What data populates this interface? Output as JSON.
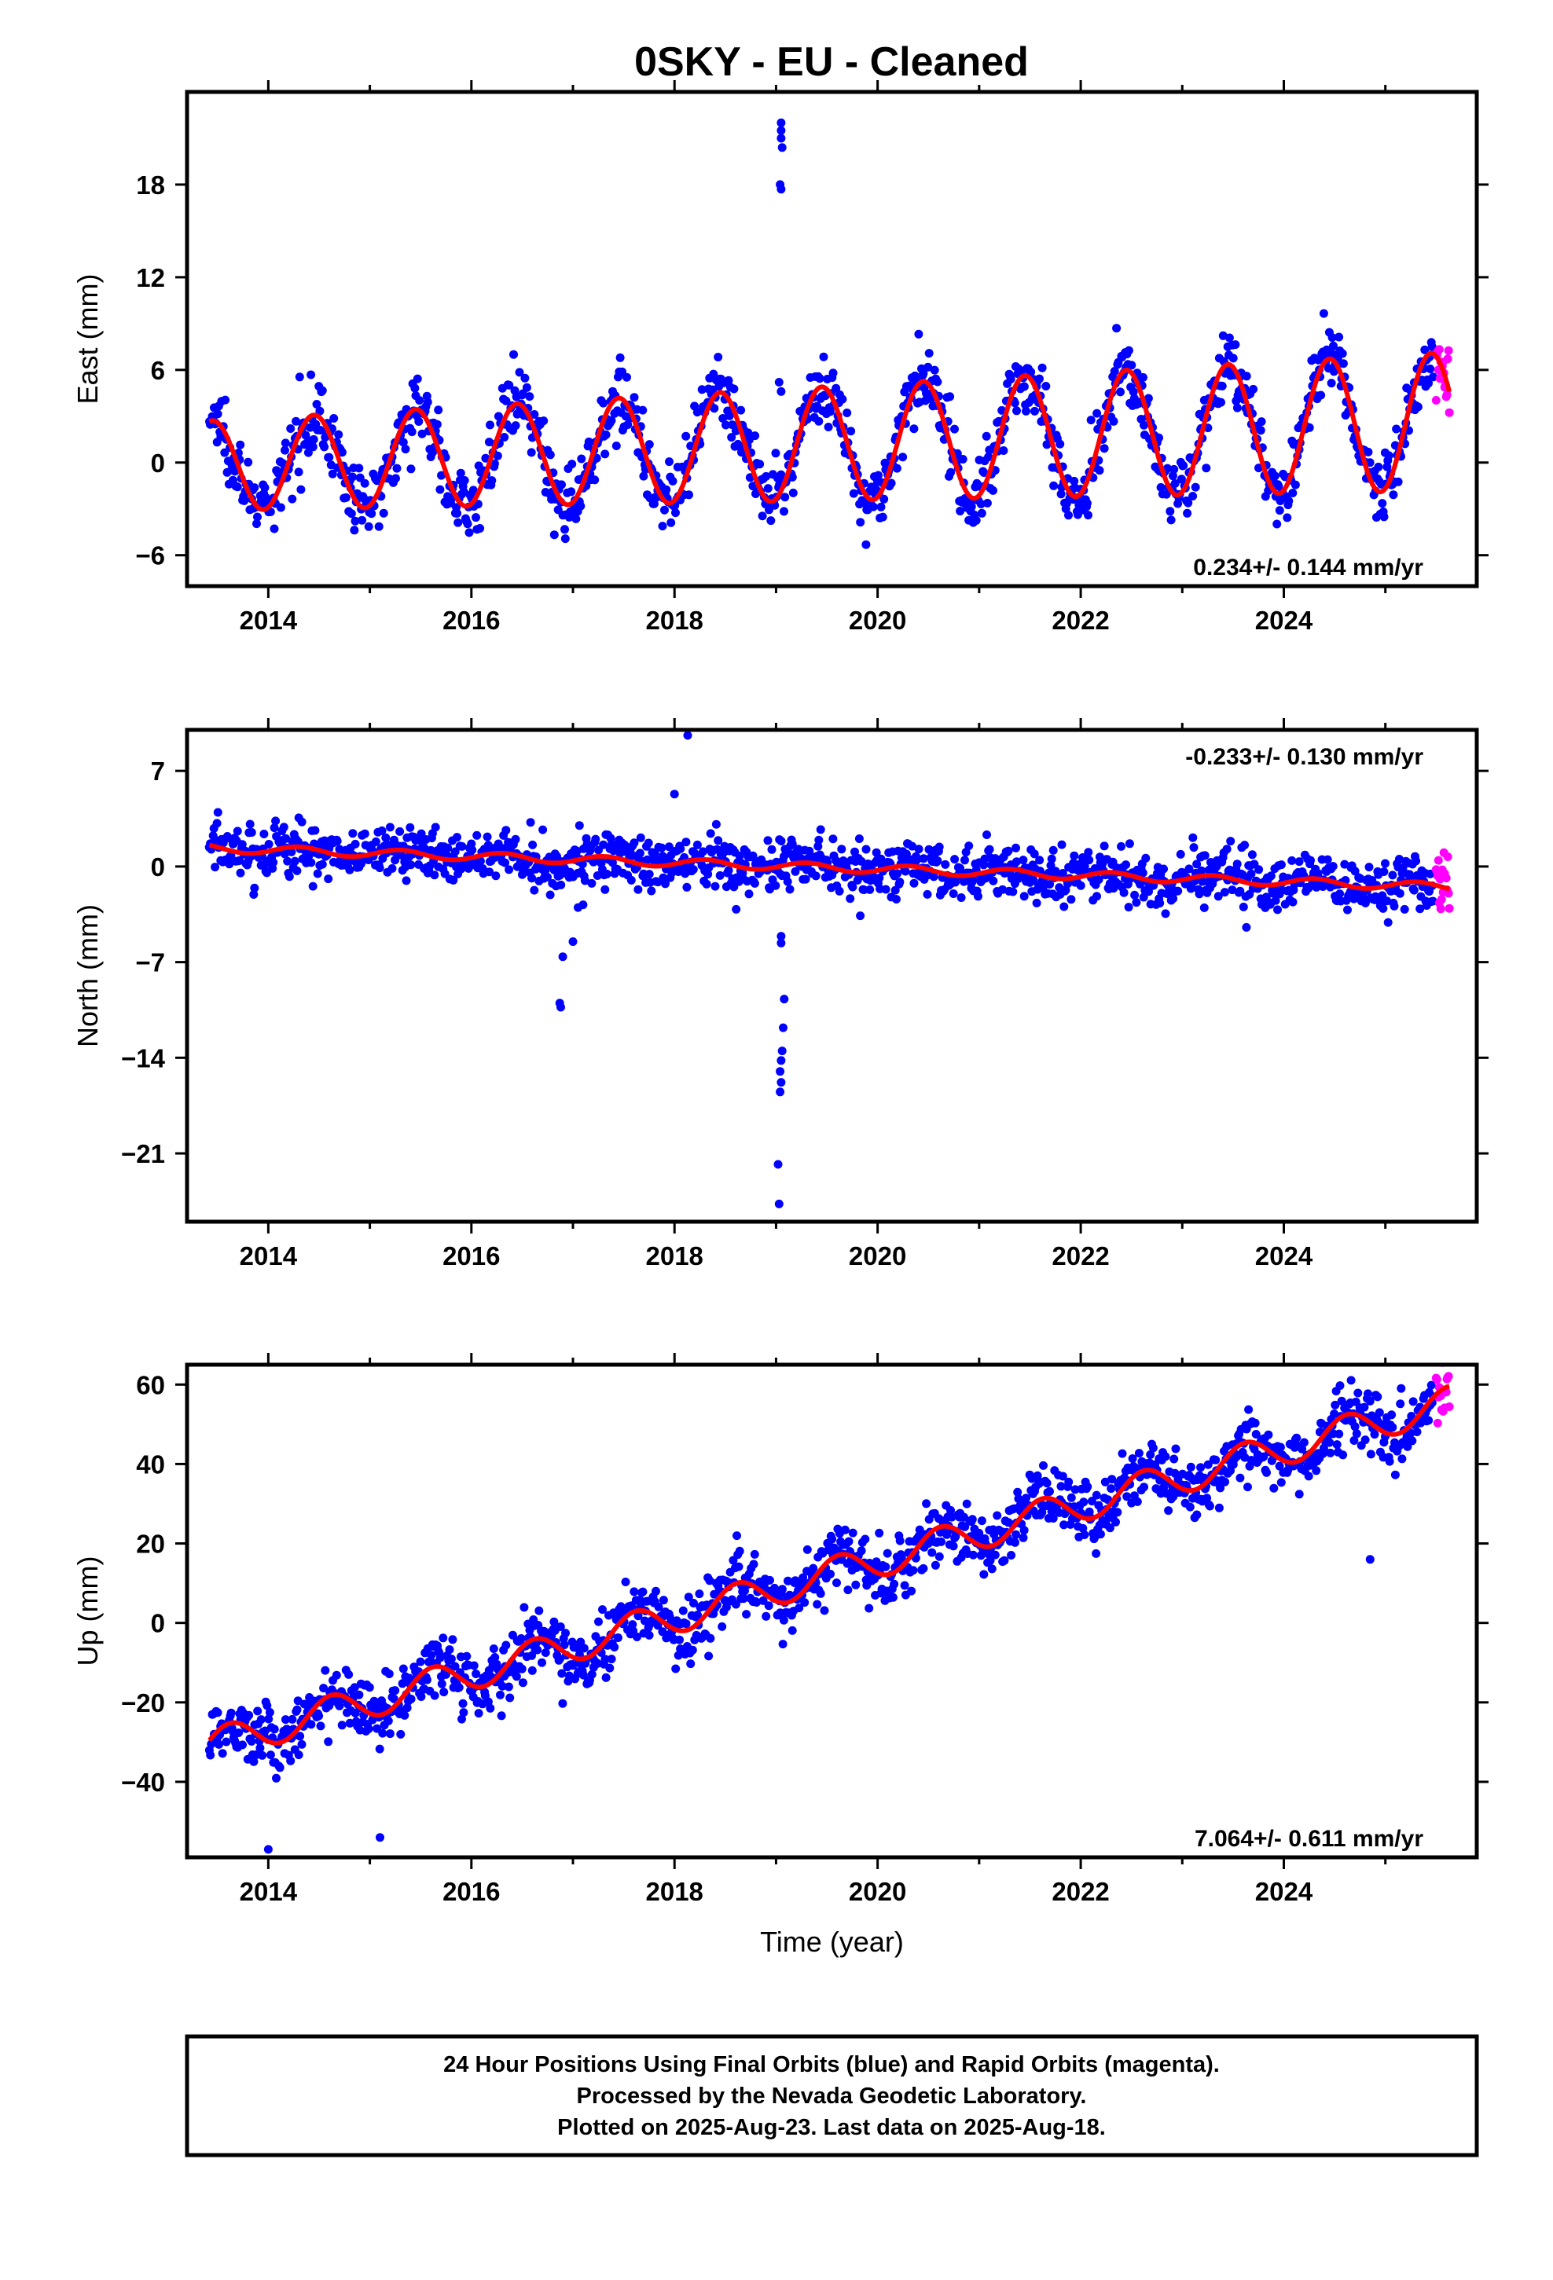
{
  "title": "0SKY  - EU - Cleaned",
  "footer": {
    "lines": [
      "24 Hour Positions Using Final Orbits (blue) and Rapid Orbits (magenta).",
      "Processed by the Nevada Geodetic Laboratory.",
      "Plotted on 2025-Aug-23. Last data on 2025-Aug-18."
    ]
  },
  "colors": {
    "final": "#0000ff",
    "rapid": "#ff00ff",
    "model": "#ff0000",
    "frame": "#000000"
  },
  "chart_data": [
    {
      "type": "scatter",
      "ylabel": "East (mm)",
      "xlabel": "",
      "xlim": [
        2013.2,
        2025.9
      ],
      "ylim": [
        -8,
        24
      ],
      "xticks": [
        2014,
        2016,
        2018,
        2020,
        2022,
        2024
      ],
      "xtick_labels": [
        "2014",
        "2016",
        "2018",
        "2020",
        "2022",
        "2024"
      ],
      "yticks": [
        -6,
        0,
        6,
        12,
        18
      ],
      "ytick_labels": [
        "−6",
        "0",
        "6",
        "12",
        "18"
      ],
      "rate_label": "0.234+/- 0.144 mm/yr",
      "rate_position": "bottom-right",
      "data_start": 2013.42,
      "data_end": 2025.47,
      "rapid_start": 2025.5,
      "rapid_end": 2025.63,
      "model": {
        "intercept": -0.2,
        "trend": 0.234,
        "amplitude": 2.9,
        "amplitude_growth": 0.13,
        "phase_peak": 0.45
      },
      "scatter_sd": 1.1,
      "outliers": [
        {
          "x": 2019.05,
          "y": 22.0
        },
        {
          "x": 2019.05,
          "y": 21.5
        },
        {
          "x": 2019.05,
          "y": 21.0
        },
        {
          "x": 2019.06,
          "y": 20.4
        },
        {
          "x": 2019.04,
          "y": 18.0
        },
        {
          "x": 2019.05,
          "y": 17.7
        },
        {
          "x": 2019.03,
          "y": 5.2
        },
        {
          "x": 2019.05,
          "y": 4.6
        }
      ]
    },
    {
      "type": "scatter",
      "ylabel": "North (mm)",
      "xlabel": "",
      "xlim": [
        2013.2,
        2025.9
      ],
      "ylim": [
        -26,
        10
      ],
      "xticks": [
        2014,
        2016,
        2018,
        2020,
        2022,
        2024
      ],
      "xtick_labels": [
        "2014",
        "2016",
        "2018",
        "2020",
        "2022",
        "2024"
      ],
      "yticks": [
        -21,
        -14,
        -7,
        0,
        7
      ],
      "ytick_labels": [
        "−21",
        "−14",
        "−7",
        "0",
        "7"
      ],
      "rate_label": "-0.233+/- 0.130 mm/yr",
      "rate_position": "top-right",
      "data_start": 2013.42,
      "data_end": 2025.47,
      "rapid_start": 2025.5,
      "rapid_end": 2025.63,
      "model": {
        "intercept": 1.35,
        "trend": -0.233,
        "amplitude": 0.3,
        "amplitude_growth": 0.0,
        "phase_peak": 0.3
      },
      "scatter_sd": 1.0,
      "outliers": [
        {
          "x": 2018.13,
          "y": 9.6
        },
        {
          "x": 2018.0,
          "y": 5.3
        },
        {
          "x": 2016.87,
          "y": -10.0
        },
        {
          "x": 2016.88,
          "y": -10.3
        },
        {
          "x": 2016.9,
          "y": -6.6
        },
        {
          "x": 2017.0,
          "y": -5.5
        },
        {
          "x": 2017.05,
          "y": -3.0
        },
        {
          "x": 2017.1,
          "y": -2.8
        },
        {
          "x": 2019.03,
          "y": -24.7
        },
        {
          "x": 2019.02,
          "y": -21.8
        },
        {
          "x": 2019.04,
          "y": -16.5
        },
        {
          "x": 2019.05,
          "y": -15.8
        },
        {
          "x": 2019.04,
          "y": -15.0
        },
        {
          "x": 2019.05,
          "y": -14.2
        },
        {
          "x": 2019.06,
          "y": -13.5
        },
        {
          "x": 2019.07,
          "y": -11.8
        },
        {
          "x": 2019.08,
          "y": -9.7
        },
        {
          "x": 2019.05,
          "y": -5.6
        },
        {
          "x": 2019.05,
          "y": -5.1
        }
      ]
    },
    {
      "type": "scatter",
      "ylabel": "Up (mm)",
      "xlabel": "Time (year)",
      "xlim": [
        2013.2,
        2025.9
      ],
      "ylim": [
        -59,
        65
      ],
      "xticks": [
        2014,
        2016,
        2018,
        2020,
        2022,
        2024
      ],
      "xtick_labels": [
        "2014",
        "2016",
        "2018",
        "2020",
        "2022",
        "2024"
      ],
      "yticks": [
        -40,
        -20,
        0,
        20,
        40,
        60
      ],
      "ytick_labels": [
        "−40",
        "−20",
        "0",
        "20",
        "40",
        "60"
      ],
      "rate_label": "7.064+/- 0.611 mm/yr",
      "rate_position": "bottom-right",
      "data_start": 2013.42,
      "data_end": 2025.47,
      "rapid_start": 2025.5,
      "rapid_end": 2025.63,
      "model": {
        "intercept": -31,
        "trend": 7.064,
        "amplitude": 4.2,
        "amplitude_growth": 0.0,
        "phase_peak": 0.62
      },
      "scatter_sd": 4.0,
      "outliers": [
        {
          "x": 2014.0,
          "y": -57
        },
        {
          "x": 2015.1,
          "y": -54
        },
        {
          "x": 2016.6,
          "y": -12
        },
        {
          "x": 2022.7,
          "y": 45
        },
        {
          "x": 2024.85,
          "y": 16
        }
      ]
    }
  ]
}
